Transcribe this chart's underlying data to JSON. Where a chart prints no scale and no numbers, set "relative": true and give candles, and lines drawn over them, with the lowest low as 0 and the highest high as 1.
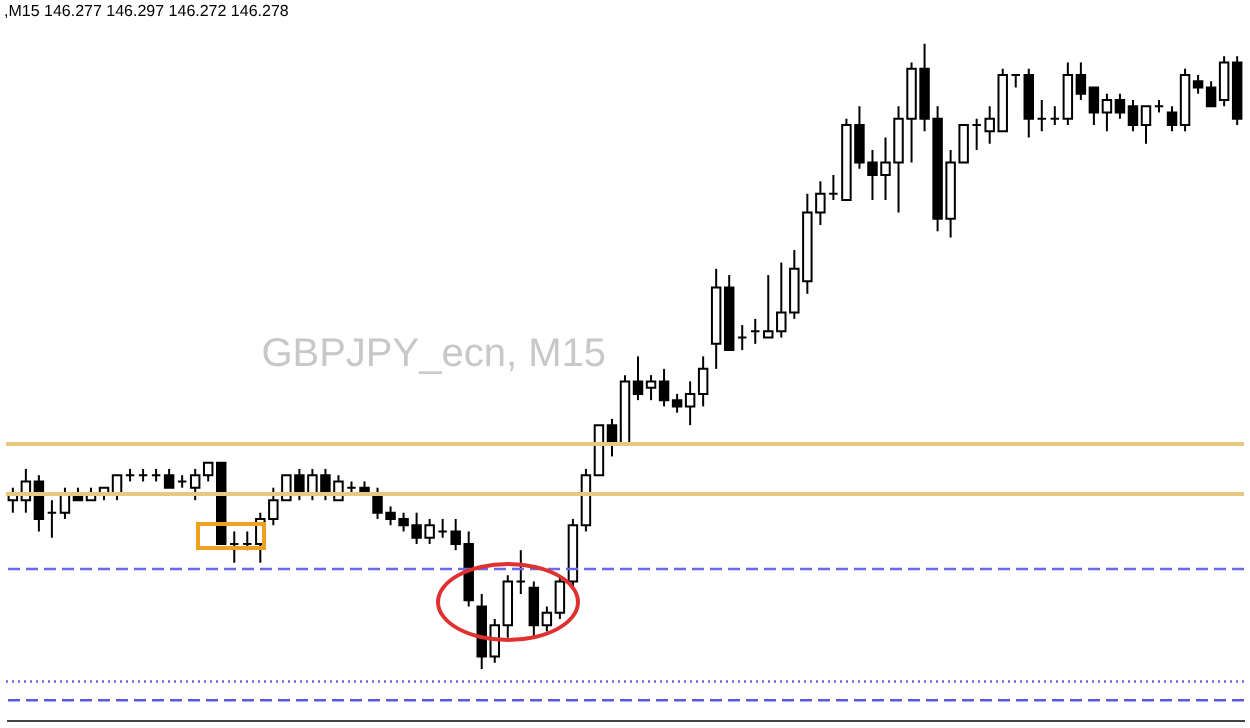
{
  "chart_data": {
    "type": "candlestick",
    "relative": true,
    "title": ",M15 146.277 146.297 146.272 146.278",
    "annotations": [
      "GBPJPY_ecn, M15"
    ],
    "tick_labels": false,
    "grid": false,
    "legend": false,
    "categories": [
      null,
      null,
      null,
      null,
      null,
      null,
      null,
      null,
      null,
      null,
      null,
      null,
      null,
      null,
      null,
      null,
      null,
      null,
      null,
      null,
      null,
      null,
      null,
      null,
      null,
      null,
      null,
      null,
      null,
      null,
      null,
      null,
      null,
      null,
      null,
      null,
      null,
      null,
      null,
      null,
      null,
      null,
      null,
      null,
      null,
      null,
      null,
      null,
      null,
      null,
      null,
      null,
      null,
      null,
      null,
      null,
      null,
      null,
      null,
      null,
      null,
      null,
      null,
      null,
      null,
      null,
      null,
      null,
      null,
      null,
      null,
      null,
      null,
      null,
      null,
      null,
      null,
      null,
      null,
      null,
      null,
      null,
      null,
      null,
      null,
      null,
      null,
      null,
      null,
      null,
      null,
      null,
      null,
      null,
      null
    ],
    "ohlc": [
      [
        0.27,
        0.29,
        0.25,
        0.28
      ],
      [
        0.27,
        0.32,
        0.25,
        0.3
      ],
      [
        0.3,
        0.31,
        0.22,
        0.24
      ],
      [
        0.25,
        0.27,
        0.21,
        0.25
      ],
      [
        0.25,
        0.29,
        0.24,
        0.28
      ],
      [
        0.28,
        0.29,
        0.27,
        0.27
      ],
      [
        0.27,
        0.29,
        0.27,
        0.28
      ],
      [
        0.28,
        0.29,
        0.27,
        0.29
      ],
      [
        0.28,
        0.31,
        0.27,
        0.31
      ],
      [
        0.31,
        0.32,
        0.3,
        0.31
      ],
      [
        0.31,
        0.32,
        0.3,
        0.31
      ],
      [
        0.31,
        0.32,
        0.3,
        0.31
      ],
      [
        0.31,
        0.32,
        0.29,
        0.29
      ],
      [
        0.3,
        0.31,
        0.29,
        0.3
      ],
      [
        0.29,
        0.32,
        0.27,
        0.31
      ],
      [
        0.31,
        0.33,
        0.3,
        0.33
      ],
      [
        0.33,
        0.33,
        0.2,
        0.2
      ],
      [
        0.2,
        0.22,
        0.17,
        0.2
      ],
      [
        0.2,
        0.22,
        0.19,
        0.2
      ],
      [
        0.2,
        0.25,
        0.17,
        0.24
      ],
      [
        0.24,
        0.29,
        0.23,
        0.27
      ],
      [
        0.27,
        0.31,
        0.27,
        0.31
      ],
      [
        0.31,
        0.32,
        0.27,
        0.28
      ],
      [
        0.28,
        0.32,
        0.27,
        0.31
      ],
      [
        0.31,
        0.32,
        0.27,
        0.28
      ],
      [
        0.27,
        0.31,
        0.27,
        0.3
      ],
      [
        0.29,
        0.3,
        0.28,
        0.29
      ],
      [
        0.29,
        0.3,
        0.28,
        0.28
      ],
      [
        0.28,
        0.29,
        0.24,
        0.25
      ],
      [
        0.25,
        0.26,
        0.23,
        0.24
      ],
      [
        0.24,
        0.25,
        0.22,
        0.23
      ],
      [
        0.23,
        0.25,
        0.2,
        0.21
      ],
      [
        0.21,
        0.24,
        0.2,
        0.23
      ],
      [
        0.22,
        0.24,
        0.21,
        0.22
      ],
      [
        0.22,
        0.24,
        0.19,
        0.2
      ],
      [
        0.2,
        0.22,
        0.1,
        0.11
      ],
      [
        0.1,
        0.12,
        0.0,
        0.02
      ],
      [
        0.02,
        0.08,
        0.01,
        0.07
      ],
      [
        0.07,
        0.15,
        0.05,
        0.14
      ],
      [
        0.14,
        0.19,
        0.12,
        0.14
      ],
      [
        0.13,
        0.14,
        0.05,
        0.07
      ],
      [
        0.07,
        0.1,
        0.06,
        0.09
      ],
      [
        0.09,
        0.15,
        0.08,
        0.14
      ],
      [
        0.14,
        0.24,
        0.13,
        0.23
      ],
      [
        0.23,
        0.32,
        0.22,
        0.31
      ],
      [
        0.31,
        0.39,
        0.31,
        0.39
      ],
      [
        0.39,
        0.4,
        0.34,
        0.36
      ],
      [
        0.36,
        0.47,
        0.36,
        0.46
      ],
      [
        0.46,
        0.5,
        0.43,
        0.44
      ],
      [
        0.45,
        0.47,
        0.43,
        0.46
      ],
      [
        0.46,
        0.48,
        0.42,
        0.43
      ],
      [
        0.43,
        0.44,
        0.41,
        0.42
      ],
      [
        0.42,
        0.46,
        0.39,
        0.44
      ],
      [
        0.44,
        0.5,
        0.42,
        0.48
      ],
      [
        0.52,
        0.64,
        0.48,
        0.61
      ],
      [
        0.61,
        0.63,
        0.51,
        0.51
      ],
      [
        0.53,
        0.55,
        0.51,
        0.53
      ],
      [
        0.54,
        0.56,
        0.52,
        0.54
      ],
      [
        0.53,
        0.63,
        0.53,
        0.54
      ],
      [
        0.54,
        0.65,
        0.53,
        0.57
      ],
      [
        0.57,
        0.67,
        0.56,
        0.64
      ],
      [
        0.62,
        0.76,
        0.6,
        0.73
      ],
      [
        0.73,
        0.78,
        0.71,
        0.76
      ],
      [
        0.76,
        0.79,
        0.75,
        0.76
      ],
      [
        0.75,
        0.88,
        0.75,
        0.87
      ],
      [
        0.87,
        0.9,
        0.8,
        0.81
      ],
      [
        0.81,
        0.83,
        0.75,
        0.79
      ],
      [
        0.79,
        0.85,
        0.75,
        0.81
      ],
      [
        0.81,
        0.9,
        0.73,
        0.88
      ],
      [
        0.88,
        0.97,
        0.81,
        0.96
      ],
      [
        0.96,
        1.0,
        0.86,
        0.88
      ],
      [
        0.88,
        0.9,
        0.7,
        0.72
      ],
      [
        0.72,
        0.83,
        0.69,
        0.81
      ],
      [
        0.81,
        0.87,
        0.81,
        0.87
      ],
      [
        0.87,
        0.88,
        0.83,
        0.87
      ],
      [
        0.86,
        0.9,
        0.84,
        0.88
      ],
      [
        0.86,
        0.96,
        0.86,
        0.95
      ],
      [
        0.95,
        0.95,
        0.93,
        0.95
      ],
      [
        0.95,
        0.96,
        0.85,
        0.88
      ],
      [
        0.88,
        0.91,
        0.86,
        0.88
      ],
      [
        0.88,
        0.9,
        0.87,
        0.88
      ],
      [
        0.88,
        0.97,
        0.87,
        0.95
      ],
      [
        0.95,
        0.97,
        0.91,
        0.92
      ],
      [
        0.93,
        0.93,
        0.87,
        0.89
      ],
      [
        0.89,
        0.92,
        0.86,
        0.91
      ],
      [
        0.91,
        0.92,
        0.88,
        0.89
      ],
      [
        0.9,
        0.91,
        0.86,
        0.87
      ],
      [
        0.87,
        0.9,
        0.84,
        0.9
      ],
      [
        0.9,
        0.91,
        0.89,
        0.9
      ],
      [
        0.89,
        0.9,
        0.86,
        0.87
      ],
      [
        0.87,
        0.96,
        0.86,
        0.95
      ],
      [
        0.94,
        0.95,
        0.92,
        0.93
      ],
      [
        0.93,
        0.94,
        0.9,
        0.9
      ],
      [
        0.91,
        0.98,
        0.9,
        0.97
      ],
      [
        0.97,
        0.98,
        0.87,
        0.88
      ]
    ],
    "ref_lines": [
      {
        "axis": "y",
        "value": 0.28,
        "color": "#e8c77e",
        "line_style": "solid"
      },
      {
        "axis": "y",
        "value": 0.36,
        "color": "#e8c77e",
        "line_style": "solid"
      },
      {
        "axis": "y",
        "value": 0.16,
        "color": "#6a6ae8",
        "line_style": "dashed"
      },
      {
        "axis": "y",
        "value": -0.02,
        "color": "#6a6ae8",
        "line_style": "dotted"
      },
      {
        "axis": "y",
        "value": -0.05,
        "color": "#5a5ae0",
        "line_style": "dashed"
      }
    ]
  }
}
